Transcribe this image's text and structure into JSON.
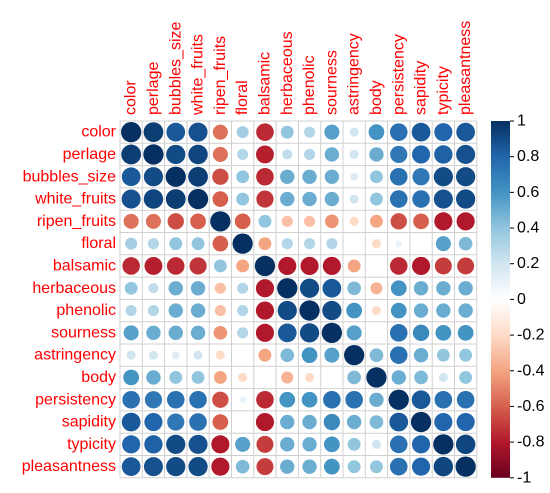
{
  "chart_data": {
    "type": "heatmap",
    "method": "circle",
    "shape": "full",
    "grid": true,
    "label_color": "#ff0000",
    "variables": [
      "color",
      "perlage",
      "bubbles_size",
      "white_fruits",
      "ripen_fruits",
      "floral",
      "balsamic",
      "herbaceous",
      "phenolic",
      "sourness",
      "astringency",
      "body",
      "persistency",
      "sapidity",
      "typicity",
      "pleasantness"
    ],
    "matrix": [
      [
        1.0,
        0.95,
        0.85,
        0.88,
        -0.55,
        0.35,
        -0.75,
        0.4,
        0.3,
        0.55,
        0.2,
        0.6,
        0.75,
        0.85,
        0.8,
        0.85
      ],
      [
        0.95,
        1.0,
        0.9,
        0.92,
        -0.55,
        0.3,
        -0.78,
        0.25,
        0.3,
        0.5,
        0.2,
        0.5,
        0.72,
        0.8,
        0.82,
        0.88
      ],
      [
        0.85,
        0.9,
        1.0,
        0.95,
        -0.65,
        0.4,
        -0.75,
        0.5,
        0.5,
        0.5,
        0.15,
        0.4,
        0.75,
        0.72,
        0.9,
        0.9
      ],
      [
        0.88,
        0.92,
        0.95,
        1.0,
        -0.6,
        0.4,
        -0.72,
        0.5,
        0.5,
        0.5,
        0.2,
        0.4,
        0.75,
        0.75,
        0.88,
        0.9
      ],
      [
        -0.55,
        -0.55,
        -0.65,
        -0.6,
        1.0,
        -0.6,
        0.4,
        -0.3,
        -0.3,
        -0.45,
        -0.2,
        -0.4,
        -0.65,
        -0.6,
        -0.8,
        -0.8
      ],
      [
        0.35,
        0.3,
        0.4,
        0.4,
        -0.6,
        1.0,
        -0.4,
        0.3,
        0.3,
        0.3,
        0.0,
        -0.2,
        0.1,
        0.0,
        0.55,
        0.45
      ],
      [
        -0.75,
        -0.78,
        -0.75,
        -0.72,
        0.4,
        -0.4,
        1.0,
        -0.8,
        -0.8,
        -0.8,
        -0.4,
        0.0,
        -0.75,
        -0.8,
        -0.7,
        -0.7
      ],
      [
        0.4,
        0.25,
        0.5,
        0.5,
        -0.3,
        0.3,
        -0.8,
        1.0,
        0.9,
        0.85,
        0.45,
        -0.35,
        0.6,
        0.5,
        0.5,
        0.5
      ],
      [
        0.3,
        0.3,
        0.5,
        0.5,
        -0.3,
        0.3,
        -0.8,
        0.9,
        1.0,
        0.9,
        0.6,
        -0.2,
        0.6,
        0.5,
        0.5,
        0.5
      ],
      [
        0.55,
        0.5,
        0.5,
        0.5,
        -0.45,
        0.3,
        -0.8,
        0.85,
        0.9,
        1.0,
        0.55,
        0.0,
        0.75,
        0.65,
        0.6,
        0.6
      ],
      [
        0.2,
        0.2,
        0.15,
        0.2,
        -0.2,
        0.0,
        -0.4,
        0.45,
        0.6,
        0.55,
        1.0,
        0.45,
        0.75,
        0.5,
        0.4,
        0.4
      ],
      [
        0.6,
        0.5,
        0.4,
        0.4,
        -0.4,
        -0.2,
        0.0,
        -0.35,
        -0.2,
        0.0,
        0.45,
        1.0,
        0.5,
        0.45,
        0.2,
        0.4
      ],
      [
        0.75,
        0.72,
        0.75,
        0.75,
        -0.65,
        0.1,
        -0.75,
        0.6,
        0.6,
        0.75,
        0.75,
        0.5,
        1.0,
        0.85,
        0.75,
        0.75
      ],
      [
        0.85,
        0.8,
        0.72,
        0.75,
        -0.6,
        0.0,
        -0.8,
        0.5,
        0.5,
        0.65,
        0.5,
        0.45,
        0.85,
        1.0,
        0.8,
        0.8
      ],
      [
        0.8,
        0.82,
        0.9,
        0.88,
        -0.8,
        0.55,
        -0.7,
        0.5,
        0.5,
        0.6,
        0.4,
        0.2,
        0.75,
        0.8,
        1.0,
        0.92
      ],
      [
        0.85,
        0.88,
        0.9,
        0.9,
        -0.8,
        0.45,
        -0.7,
        0.5,
        0.5,
        0.6,
        0.4,
        0.4,
        0.75,
        0.8,
        0.92,
        1.0
      ]
    ],
    "colorbar": {
      "range": [
        -1,
        1
      ],
      "ticks": [
        "1",
        "0.8",
        "0.6",
        "0.4",
        "0.2",
        "0",
        "-0.2",
        "-0.4",
        "-0.6",
        "-0.8",
        "-1"
      ]
    },
    "palette": [
      "#67001f",
      "#b2182b",
      "#d6604d",
      "#f4a582",
      "#fddbc7",
      "#ffffff",
      "#d1e5f0",
      "#92c5de",
      "#4393c3",
      "#2166ac",
      "#053061"
    ]
  }
}
